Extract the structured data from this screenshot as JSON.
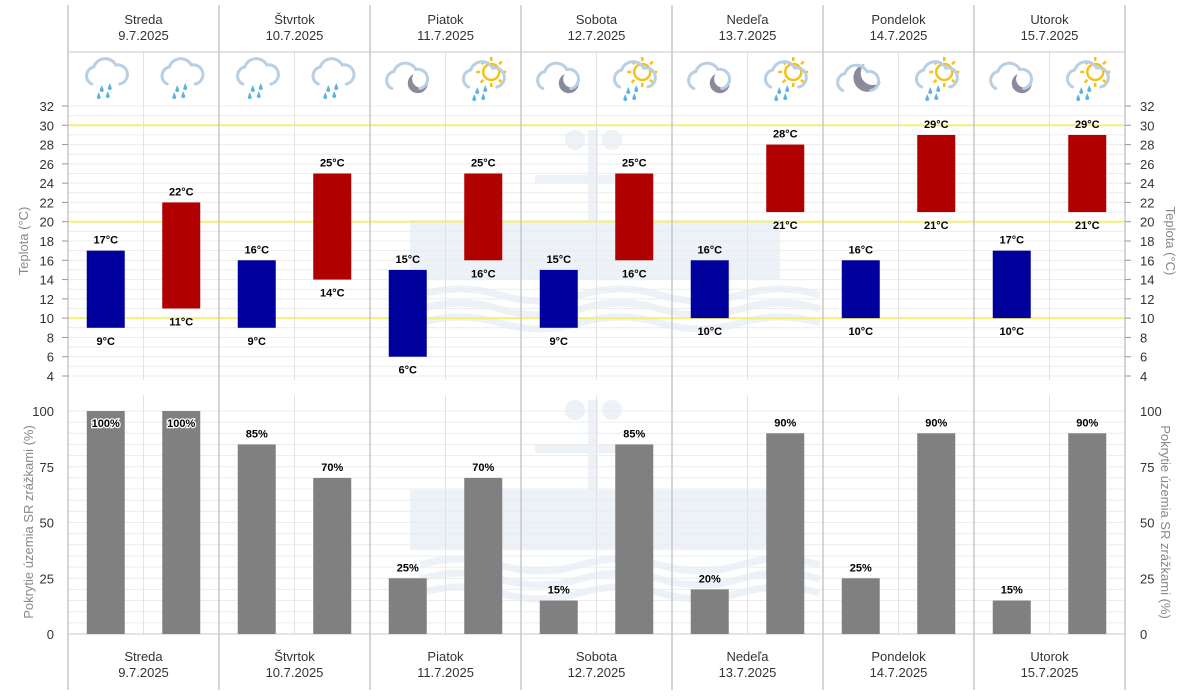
{
  "logo_watermark": "SHMÚ",
  "colors": {
    "night_bar": "#00009c",
    "day_bar": "#b00000",
    "precip_bar": "#808080",
    "threshold_line": "#f5f07a",
    "icon_cloud": "#b9cfe3",
    "icon_rain": "#5bb3e0",
    "icon_sun": "#f2c21b",
    "icon_moon": "#8a8a9a"
  },
  "chart_data": [
    {
      "type": "bar",
      "subtype": "floating-range",
      "ylabel_left": "Teplota (°C)",
      "ylabel_right": "Teplota (°C)",
      "ylim": [
        4,
        32
      ],
      "yticks": [
        4,
        6,
        8,
        10,
        12,
        14,
        16,
        18,
        20,
        22,
        24,
        26,
        28,
        30,
        32
      ],
      "highlight_lines": [
        10,
        20,
        30
      ],
      "unit": "°C",
      "categories": [
        {
          "day": "Streda",
          "date": "9.7.2025",
          "icons": [
            "rain",
            "rain"
          ]
        },
        {
          "day": "Štvrtok",
          "date": "10.7.2025",
          "icons": [
            "rain",
            "rain"
          ]
        },
        {
          "day": "Piatok",
          "date": "11.7.2025",
          "icons": [
            "cloud-moon",
            "sun-cloud-rain"
          ]
        },
        {
          "day": "Sobota",
          "date": "12.7.2025",
          "icons": [
            "cloud-moon",
            "sun-cloud-rain"
          ]
        },
        {
          "day": "Nedeľa",
          "date": "13.7.2025",
          "icons": [
            "cloud-moon",
            "sun-cloud-rain"
          ]
        },
        {
          "day": "Pondelok",
          "date": "14.7.2025",
          "icons": [
            "moon-cloud",
            "sun-cloud-rain"
          ]
        },
        {
          "day": "Utorok",
          "date": "15.7.2025",
          "icons": [
            "cloud-moon",
            "sun-cloud-rain"
          ]
        }
      ],
      "series": [
        {
          "name": "night",
          "min": [
            9,
            9,
            6,
            9,
            10,
            10,
            10
          ],
          "max": [
            17,
            16,
            15,
            15,
            16,
            16,
            17
          ]
        },
        {
          "name": "day",
          "min": [
            11,
            14,
            16,
            16,
            21,
            21,
            21
          ],
          "max": [
            22,
            25,
            25,
            25,
            28,
            29,
            29
          ]
        }
      ]
    },
    {
      "type": "bar",
      "ylabel_left": "Pokrytie územia SR zrážkami (%)",
      "ylabel_right": "Pokrytie územia SR zrážkami (%)",
      "ylim": [
        0,
        100
      ],
      "yticks": [
        0,
        25,
        50,
        75,
        100
      ],
      "unit": "%",
      "series": [
        {
          "name": "night",
          "values": [
            100,
            85,
            25,
            15,
            20,
            25,
            15
          ]
        },
        {
          "name": "day",
          "values": [
            100,
            70,
            70,
            85,
            90,
            90,
            90
          ]
        }
      ]
    }
  ]
}
